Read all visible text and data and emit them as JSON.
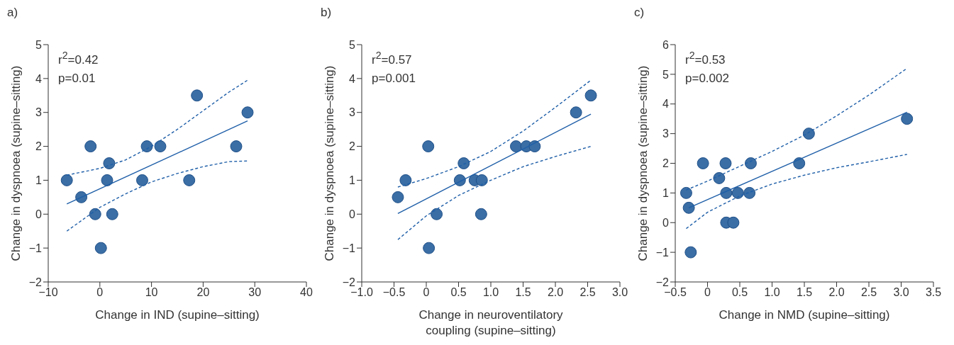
{
  "chart_data": [
    {
      "type": "scatter",
      "title": "a)",
      "xlabel": "Change in IND (supine–sitting)",
      "ylabel": "Change in dyspnoea (supine–sitting)",
      "annotations": [
        "r$^{2}$=0.42",
        "p=0.01"
      ],
      "marker": "circle",
      "xlim": [
        -10,
        40
      ],
      "xticks": [
        -10,
        0,
        10,
        20,
        30,
        40
      ],
      "ylim": [
        -2,
        5
      ],
      "yticks": [
        -2,
        -1,
        0,
        1,
        2,
        3,
        4,
        5
      ],
      "series": [
        {
          "color": "#3a6ea5",
          "x": [
            -6.4,
            -3.6,
            -1.8,
            -0.9,
            0.2,
            1.4,
            1.8,
            2.4,
            8.2,
            9.1,
            11.7,
            17.3,
            18.8,
            26.4,
            28.6
          ],
          "values": [
            1,
            0.5,
            2,
            0,
            -1,
            1,
            1.5,
            0,
            1,
            2,
            2,
            1,
            3.5,
            2,
            3
          ]
        },
        {
          "type": "line",
          "marker": "none",
          "color": "#1f5fa8",
          "line_style": "solid",
          "x": [
            -6.4,
            28.6
          ],
          "values": [
            0.3,
            2.75
          ]
        },
        {
          "type": "line",
          "marker": "none",
          "color": "#1f5fa8",
          "line_style": "dashed",
          "x": [
            -6.4,
            0,
            5,
            10,
            15,
            20,
            25,
            28.6
          ],
          "values": [
            1.15,
            1.35,
            1.6,
            2.0,
            2.5,
            3.05,
            3.6,
            3.95
          ]
        },
        {
          "type": "line",
          "marker": "none",
          "color": "#1f5fa8",
          "line_style": "dashed",
          "x": [
            -6.4,
            0,
            5,
            10,
            15,
            20,
            25,
            28.6
          ],
          "values": [
            -0.5,
            0.2,
            0.6,
            0.95,
            1.2,
            1.4,
            1.55,
            1.57
          ]
        }
      ]
    },
    {
      "type": "scatter",
      "title": "b)",
      "xlabel": "Change in neuroventilatory\ncoupling (supine–sitting)",
      "ylabel": "Change in dyspnoea (supine–sitting)",
      "annotations": [
        "r$^{2}$=0.57",
        "p=0.001"
      ],
      "marker": "circle",
      "xlim": [
        -1.0,
        3.0
      ],
      "xticks": [
        {
          "value": -1.0,
          "label": "−1.0"
        },
        {
          "value": -0.5,
          "label": "−0.5"
        },
        0,
        {
          "value": 0.5,
          "label": "0.5"
        },
        {
          "value": 1.0,
          "label": "1.0"
        },
        {
          "value": 1.5,
          "label": "1.5"
        },
        {
          "value": 2.0,
          "label": "2.0"
        },
        {
          "value": 2.5,
          "label": "2.5"
        },
        {
          "value": 3.0,
          "label": "3.0"
        }
      ],
      "ylim": [
        -2,
        5
      ],
      "yticks": [
        -2,
        -1,
        0,
        1,
        2,
        3,
        4,
        5
      ],
      "series": [
        {
          "color": "#3a6ea5",
          "x": [
            -0.44,
            -0.32,
            0.03,
            0.04,
            0.16,
            0.52,
            0.58,
            0.75,
            0.86,
            0.85,
            1.39,
            1.55,
            1.68,
            2.32,
            2.55
          ],
          "values": [
            0.5,
            1,
            2,
            -1,
            0,
            1,
            1.5,
            1,
            1,
            0,
            2,
            2,
            2,
            3,
            3.5
          ]
        },
        {
          "type": "line",
          "marker": "none",
          "color": "#1f5fa8",
          "line_style": "solid",
          "x": [
            -0.44,
            2.55
          ],
          "values": [
            0.02,
            2.95
          ]
        },
        {
          "type": "line",
          "marker": "none",
          "color": "#1f5fa8",
          "line_style": "dashed",
          "x": [
            -0.44,
            0,
            0.5,
            1.0,
            1.5,
            2.0,
            2.55
          ],
          "values": [
            0.8,
            1.05,
            1.4,
            1.85,
            2.45,
            3.15,
            3.95
          ]
        },
        {
          "type": "line",
          "marker": "none",
          "color": "#1f5fa8",
          "line_style": "dashed",
          "x": [
            -0.44,
            0,
            0.5,
            1.0,
            1.5,
            2.0,
            2.55
          ],
          "values": [
            -0.75,
            -0.05,
            0.55,
            1.0,
            1.4,
            1.7,
            2.0
          ]
        }
      ]
    },
    {
      "type": "scatter",
      "title": "c)",
      "xlabel": "Change in NMD (supine–sitting)",
      "ylabel": "Change in dyspnoea (supine–sitting)",
      "annotations": [
        "r$^{2}$=0.53",
        "p=0.002"
      ],
      "marker": "circle",
      "xlim": [
        -0.5,
        3.5
      ],
      "xticks": [
        {
          "value": -0.5,
          "label": "−0.5"
        },
        0,
        {
          "value": 0.5,
          "label": "0.5"
        },
        {
          "value": 1.0,
          "label": "1.0"
        },
        {
          "value": 1.5,
          "label": "1.5"
        },
        {
          "value": 2.0,
          "label": "2.0"
        },
        {
          "value": 2.5,
          "label": "2.5"
        },
        {
          "value": 3.0,
          "label": "3.0"
        },
        {
          "value": 3.5,
          "label": "3.5"
        }
      ],
      "ylim": [
        -2,
        6
      ],
      "yticks": [
        -2,
        -1,
        0,
        1,
        2,
        3,
        4,
        5,
        6
      ],
      "series": [
        {
          "color": "#3a6ea5",
          "x": [
            -0.33,
            -0.29,
            -0.26,
            -0.07,
            0.18,
            0.28,
            0.29,
            0.29,
            0.4,
            0.47,
            0.65,
            0.67,
            1.42,
            1.57,
            3.09
          ],
          "values": [
            1,
            0.5,
            -1,
            2,
            1.5,
            2,
            1,
            0,
            0,
            1,
            1,
            2,
            2,
            3,
            3.5
          ]
        },
        {
          "type": "line",
          "marker": "none",
          "color": "#1f5fa8",
          "line_style": "solid",
          "x": [
            -0.29,
            3.09
          ],
          "values": [
            0.5,
            3.72
          ]
        },
        {
          "type": "line",
          "marker": "none",
          "color": "#1f5fa8",
          "line_style": "dashed",
          "x": [
            -0.33,
            0,
            0.5,
            1.0,
            1.5,
            2.0,
            2.5,
            3.09
          ],
          "values": [
            1.1,
            1.4,
            1.9,
            2.4,
            2.95,
            3.6,
            4.3,
            5.2
          ]
        },
        {
          "type": "line",
          "marker": "none",
          "color": "#1f5fa8",
          "line_style": "dashed",
          "x": [
            -0.33,
            0,
            0.5,
            1.0,
            1.5,
            2.0,
            2.5,
            3.09
          ],
          "values": [
            -0.2,
            0.35,
            0.9,
            1.3,
            1.6,
            1.85,
            2.05,
            2.3
          ]
        }
      ]
    }
  ]
}
